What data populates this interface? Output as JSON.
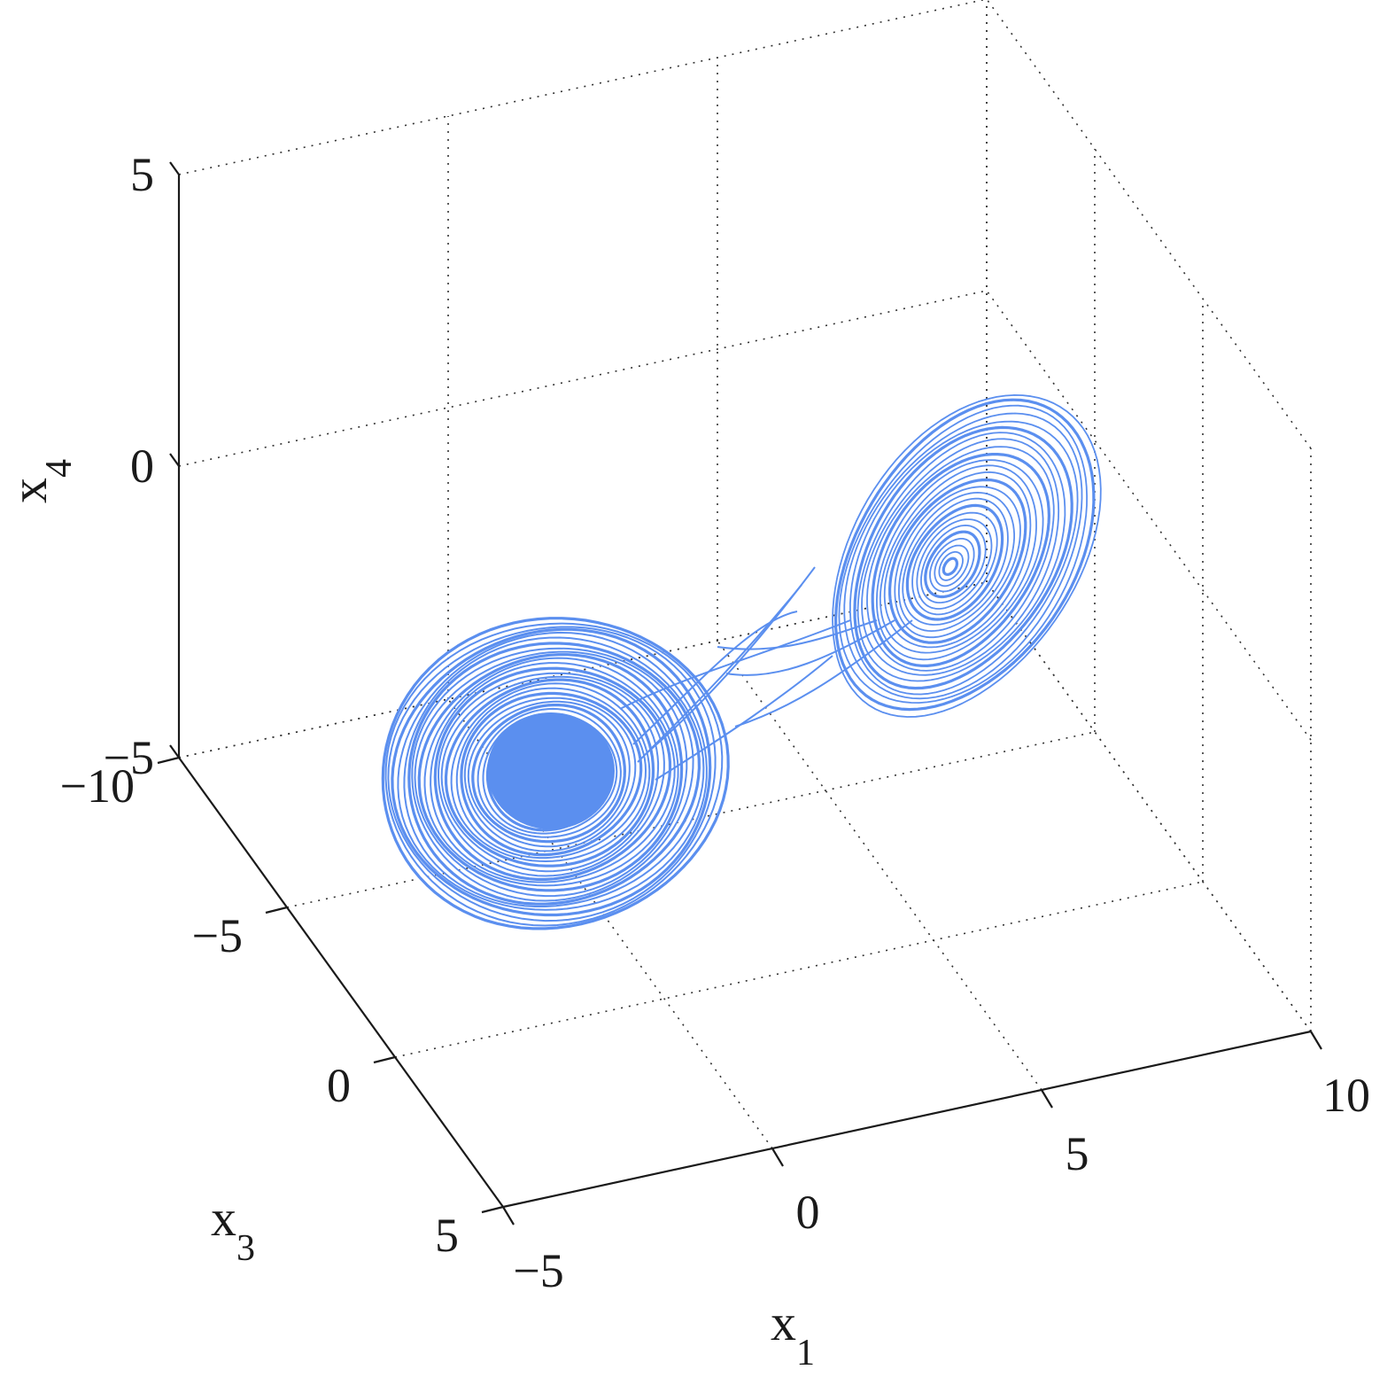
{
  "chart_data": {
    "type": "line",
    "projection": "3d",
    "title": "",
    "xlabel": {
      "text": "x",
      "sub": "1"
    },
    "ylabel": {
      "text": "x",
      "sub": "3"
    },
    "zlabel": {
      "text": "x",
      "sub": "4"
    },
    "x_ticks": [
      -5,
      0,
      5,
      10
    ],
    "y_ticks": [
      -10,
      -5,
      0,
      5
    ],
    "z_ticks": [
      -5,
      0,
      5
    ],
    "x_tick_labels": [
      "−5",
      "0",
      "5",
      "10"
    ],
    "y_tick_labels": [
      "−10",
      "−5",
      "0",
      "5"
    ],
    "z_tick_labels": [
      "−5",
      "0",
      "5"
    ],
    "xlim": [
      -5,
      10
    ],
    "ylim": [
      -10,
      5
    ],
    "zlim": [
      -5,
      5
    ],
    "grid": true,
    "series": [
      {
        "color": "#5b8fef",
        "description_free": true,
        "attractor_lobes": [
          {
            "center_x1": -3,
            "center_x3": -2,
            "center_x4": -3.5,
            "radius": 3.2
          },
          {
            "center_x1": 5.5,
            "center_x3": -8,
            "center_x4": -1,
            "radius": 2.2
          }
        ]
      }
    ]
  }
}
